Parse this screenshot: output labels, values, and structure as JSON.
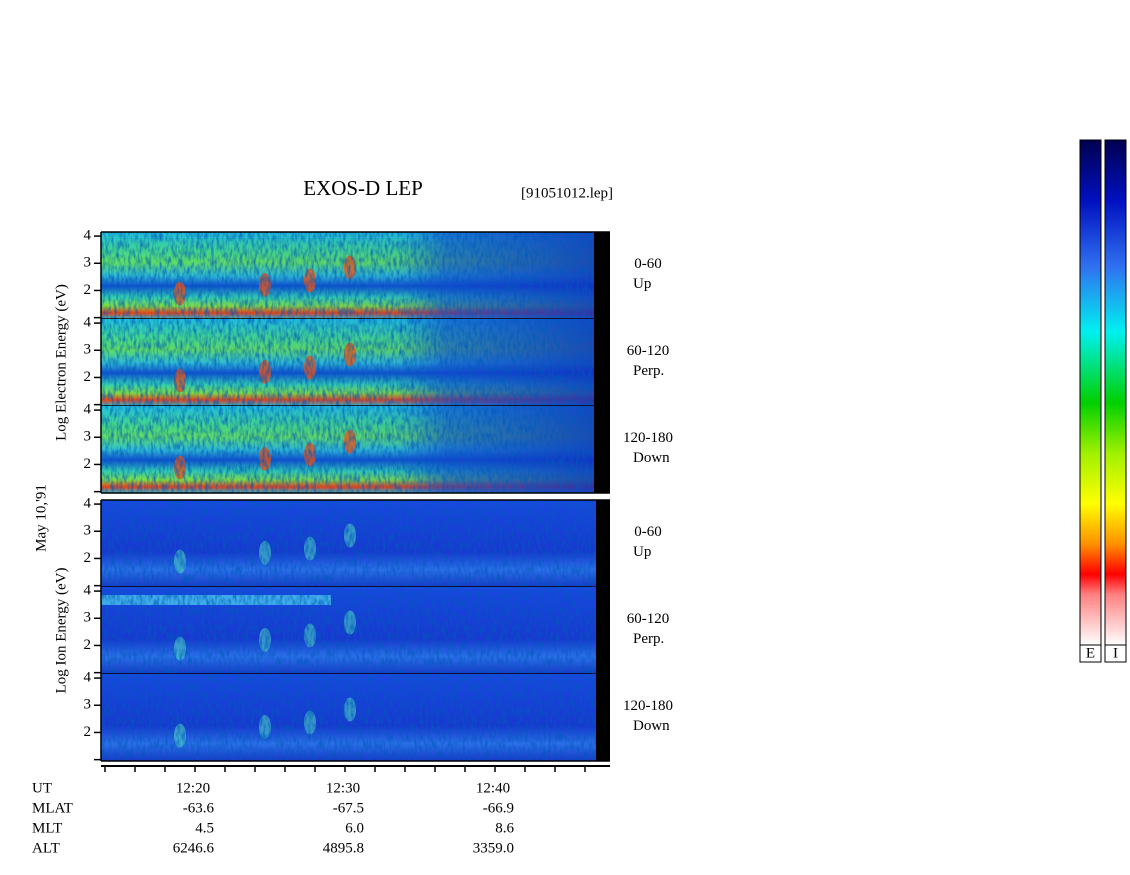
{
  "chart_data": {
    "type": "spectrogram",
    "title": "EXOS-D LEP",
    "file": "[91051012.lep]",
    "date": "May 10,'91",
    "groups": [
      {
        "ylabel": "Log Electron Energy (eV)",
        "panels": [
          {
            "range": "0-60",
            "direction": "Up"
          },
          {
            "range": "60-120",
            "direction": "Perp."
          },
          {
            "range": "120-180",
            "direction": "Down"
          }
        ]
      },
      {
        "ylabel": "Log Ion Energy (eV)",
        "panels": [
          {
            "range": "0-60",
            "direction": "Up"
          },
          {
            "range": "60-120",
            "direction": "Perp."
          },
          {
            "range": "120-180",
            "direction": "Down"
          }
        ]
      }
    ],
    "ylim": [
      0.95,
      4.15
    ],
    "yticks": [
      2,
      3,
      4
    ],
    "yticks_minor": [
      1
    ],
    "ephemeris": [
      {
        "name": "UT",
        "values": [
          "12:20",
          "12:30",
          "12:40"
        ]
      },
      {
        "name": "MLAT",
        "values": [
          "-63.6",
          "-67.5",
          "-66.9"
        ]
      },
      {
        "name": "MLT",
        "values": [
          "4.5",
          "6.0",
          "8.6"
        ]
      },
      {
        "name": "ALT",
        "values": [
          "6246.6",
          "4895.8",
          "3359.0"
        ]
      }
    ],
    "colorbar_labels": [
      "E",
      "I"
    ]
  }
}
